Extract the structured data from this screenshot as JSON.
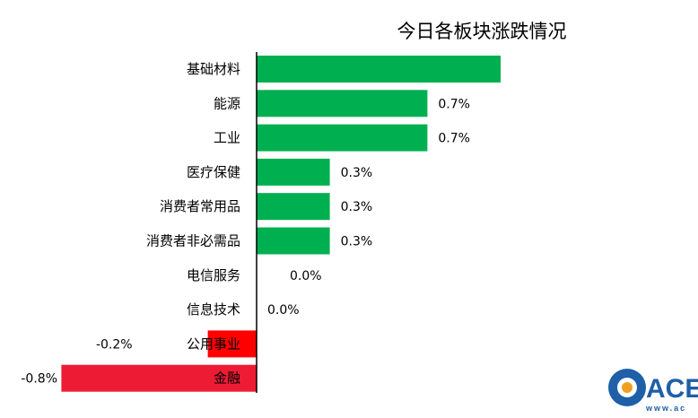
{
  "chart_data": {
    "type": "bar",
    "orientation": "horizontal",
    "title": "今日各板块涨跌情况",
    "xlabel": "",
    "ylabel": "",
    "unit": "%",
    "categories": [
      "基础材料",
      "能源",
      "工业",
      "医疗保健",
      "消费者常用品",
      "消费者非必需品",
      "电信服务",
      "信息技术",
      "公用事业",
      "金融"
    ],
    "values": [
      1.0,
      0.7,
      0.7,
      0.3,
      0.3,
      0.3,
      0.0,
      0.0,
      -0.2,
      -0.8
    ],
    "data_labels": [
      "",
      "0.7%",
      "0.7%",
      "0.3%",
      "0.3%",
      "0.3%",
      "0.0%",
      "0.0%",
      "-0.2%",
      "-0.8%"
    ],
    "grid": false,
    "legend": "none",
    "colors": {
      "positive": "#00b050",
      "negative_small": "#ff0000",
      "negative_large": "#ed1c34",
      "axis": "#000000"
    }
  },
  "watermark": {
    "text": "ACE",
    "subtext": "www.ac",
    "color": "#1f5fa8"
  }
}
